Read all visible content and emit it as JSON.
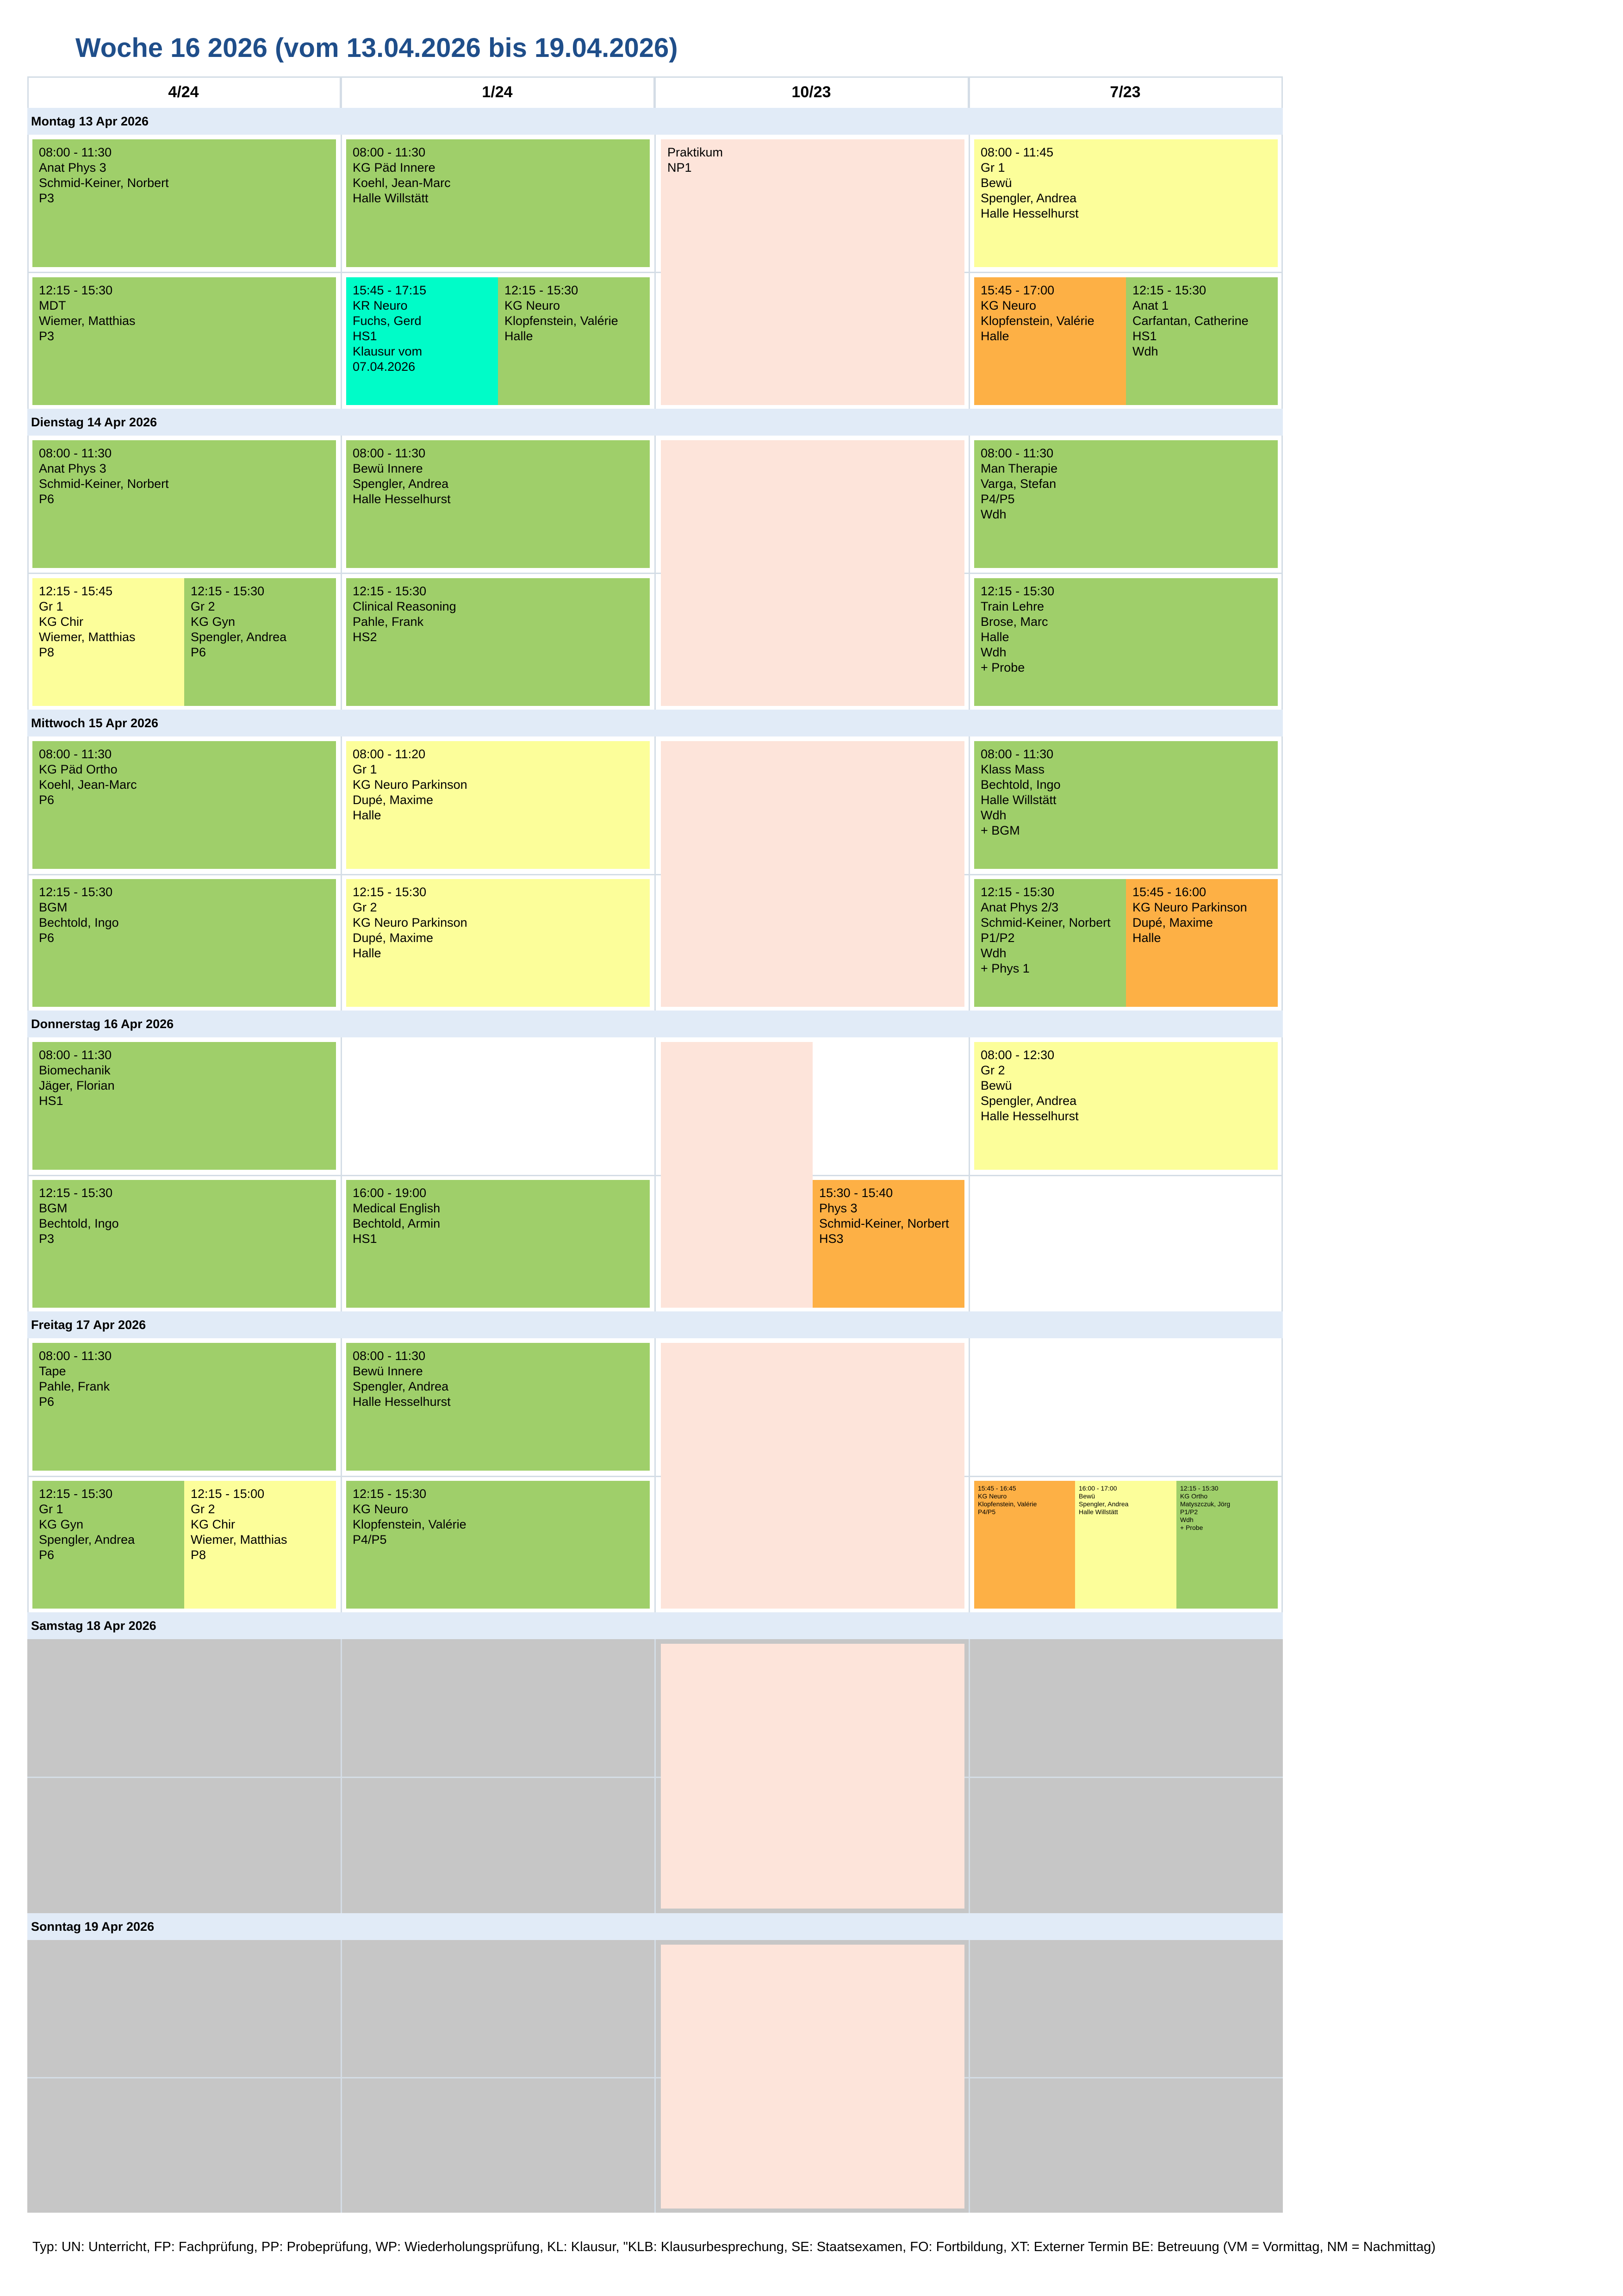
{
  "title": "Woche 16 2026 (vom 13.04.2026 bis 19.04.2026)",
  "columns": [
    "4/24",
    "1/24",
    "10/23",
    "7/23"
  ],
  "days": {
    "mon": "Montag 13 Apr 2026",
    "tue": "Dienstag 14 Apr 2026",
    "wed": "Mittwoch 15 Apr 2026",
    "thu": "Donnerstag 16 Apr 2026",
    "fri": "Freitag 17 Apr 2026",
    "sat": "Samstag 18 Apr 2026",
    "sun": "Sonntag 19 Apr 2026"
  },
  "events": {
    "mon_c1_am": "08:00 - 11:30\nAnat Phys 3\nSchmid-Keiner, Norbert\nP3",
    "mon_c2_am": "08:00 - 11:30\nKG Päd Innere\nKoehl, Jean-Marc\nHalle Willstätt",
    "mon_c3_prak": "Praktikum\nNP1",
    "mon_c4_am": "08:00 - 11:45\nGr 1\nBewü\nSpengler, Andrea\nHalle Hesselhurst",
    "mon_c1_pm": "12:15 - 15:30\nMDT\nWiemer, Matthias\nP3",
    "mon_c2_pm_a": "15:45 - 17:15\nKR Neuro\nFuchs, Gerd\nHS1\nKlausur vom\n07.04.2026",
    "mon_c2_pm_b": "12:15 - 15:30\nKG Neuro\nKlopfenstein, Valérie\nHalle",
    "mon_c4_pm_a": "15:45 - 17:00\nKG Neuro\nKlopfenstein, Valérie\nHalle",
    "mon_c4_pm_b": "12:15 - 15:30\nAnat 1\nCarfantan, Catherine\nHS1\nWdh",
    "tue_c1_am": "08:00 - 11:30\nAnat Phys 3\nSchmid-Keiner, Norbert\nP6",
    "tue_c2_am": "08:00 - 11:30\nBewü Innere\nSpengler, Andrea\nHalle Hesselhurst",
    "tue_c4_am": "08:00 - 11:30\nMan Therapie\nVarga, Stefan\nP4/P5\nWdh",
    "tue_c1_pm_a": "12:15 - 15:45\nGr 1\nKG Chir\nWiemer, Matthias\nP8",
    "tue_c1_pm_b": "12:15 - 15:30\nGr 2\nKG Gyn\nSpengler, Andrea\nP6",
    "tue_c2_pm": "12:15 - 15:30\nClinical Reasoning\nPahle, Frank\nHS2",
    "tue_c4_pm": "12:15 - 15:30\nTrain Lehre\nBrose, Marc\nHalle\nWdh\n+ Probe",
    "wed_c1_am": "08:00 - 11:30\nKG Päd Ortho\nKoehl, Jean-Marc\nP6",
    "wed_c2_am": "08:00 - 11:20\nGr 1\nKG Neuro Parkinson\nDupé, Maxime\nHalle",
    "wed_c4_am": "08:00 - 11:30\nKlass Mass\nBechtold, Ingo\nHalle Willstätt\nWdh\n+ BGM",
    "wed_c1_pm": "12:15 - 15:30\nBGM\nBechtold, Ingo\nP6",
    "wed_c2_pm": "12:15 - 15:30\nGr 2\nKG Neuro Parkinson\nDupé, Maxime\nHalle",
    "wed_c4_pm_a": "12:15 - 15:30\nAnat Phys 2/3\nSchmid-Keiner, Norbert\nP1/P2\nWdh\n+ Phys 1",
    "wed_c4_pm_b": "15:45 - 16:00\nKG Neuro Parkinson\nDupé, Maxime\nHalle",
    "thu_c1_am": "08:00 - 11:30\nBiomechanik\nJäger, Florian\nHS1",
    "thu_c4_am": "08:00 - 12:30\nGr 2\nBewü\nSpengler, Andrea\nHalle Hesselhurst",
    "thu_c1_pm": "12:15 - 15:30\nBGM\nBechtold, Ingo\nP3",
    "thu_c2_pm": "16:00 - 19:00\nMedical English\nBechtold, Armin\nHS1",
    "thu_c3_pm": "15:30 - 15:40\nPhys 3\nSchmid-Keiner, Norbert\nHS3",
    "fri_c1_am": "08:00 - 11:30\nTape\nPahle, Frank\nP6",
    "fri_c2_am": "08:00 - 11:30\nBewü Innere\nSpengler, Andrea\nHalle Hesselhurst",
    "fri_c1_pm_a": "12:15 - 15:30\nGr 1\nKG Gyn\nSpengler, Andrea\nP6",
    "fri_c1_pm_b": "12:15 - 15:00\nGr 2\nKG Chir\nWiemer, Matthias\nP8",
    "fri_c2_pm": "12:15 - 15:30\nKG Neuro\nKlopfenstein, Valérie\nP4/P5",
    "fri_c4_pm_a": "15:45 - 16:45\nKG Neuro\nKlopfenstein, Valérie\nP4/P5",
    "fri_c4_pm_b": "16:00 - 17:00\nBewü\nSpengler, Andrea\nHalle Willstätt",
    "fri_c4_pm_c": "12:15 - 15:30\nKG Ortho\nMatyszczuk, Jörg\nP1/P2\nWdh\n+ Probe"
  },
  "footer": "Typ: UN: Unterricht, FP: Fachprüfung, PP: Probeprüfung, WP: Wiederholungsprüfung, KL: Klausur, \"KLB: Klausurbesprechung, SE: Staatsexamen, FO: Fortbildung, XT: Externer Termin BE: Betreuung (VM = Vormittag, NM = Nachmittag)",
  "colors": {
    "title": "#1f4e8a",
    "day_header": "#e1ebf7",
    "green": "#9fcf6a",
    "yellow": "#fcfe9a",
    "orange": "#fdb045",
    "cyan": "#00fcc8",
    "peach": "#fde4da",
    "grey": "#c6c6c6"
  }
}
